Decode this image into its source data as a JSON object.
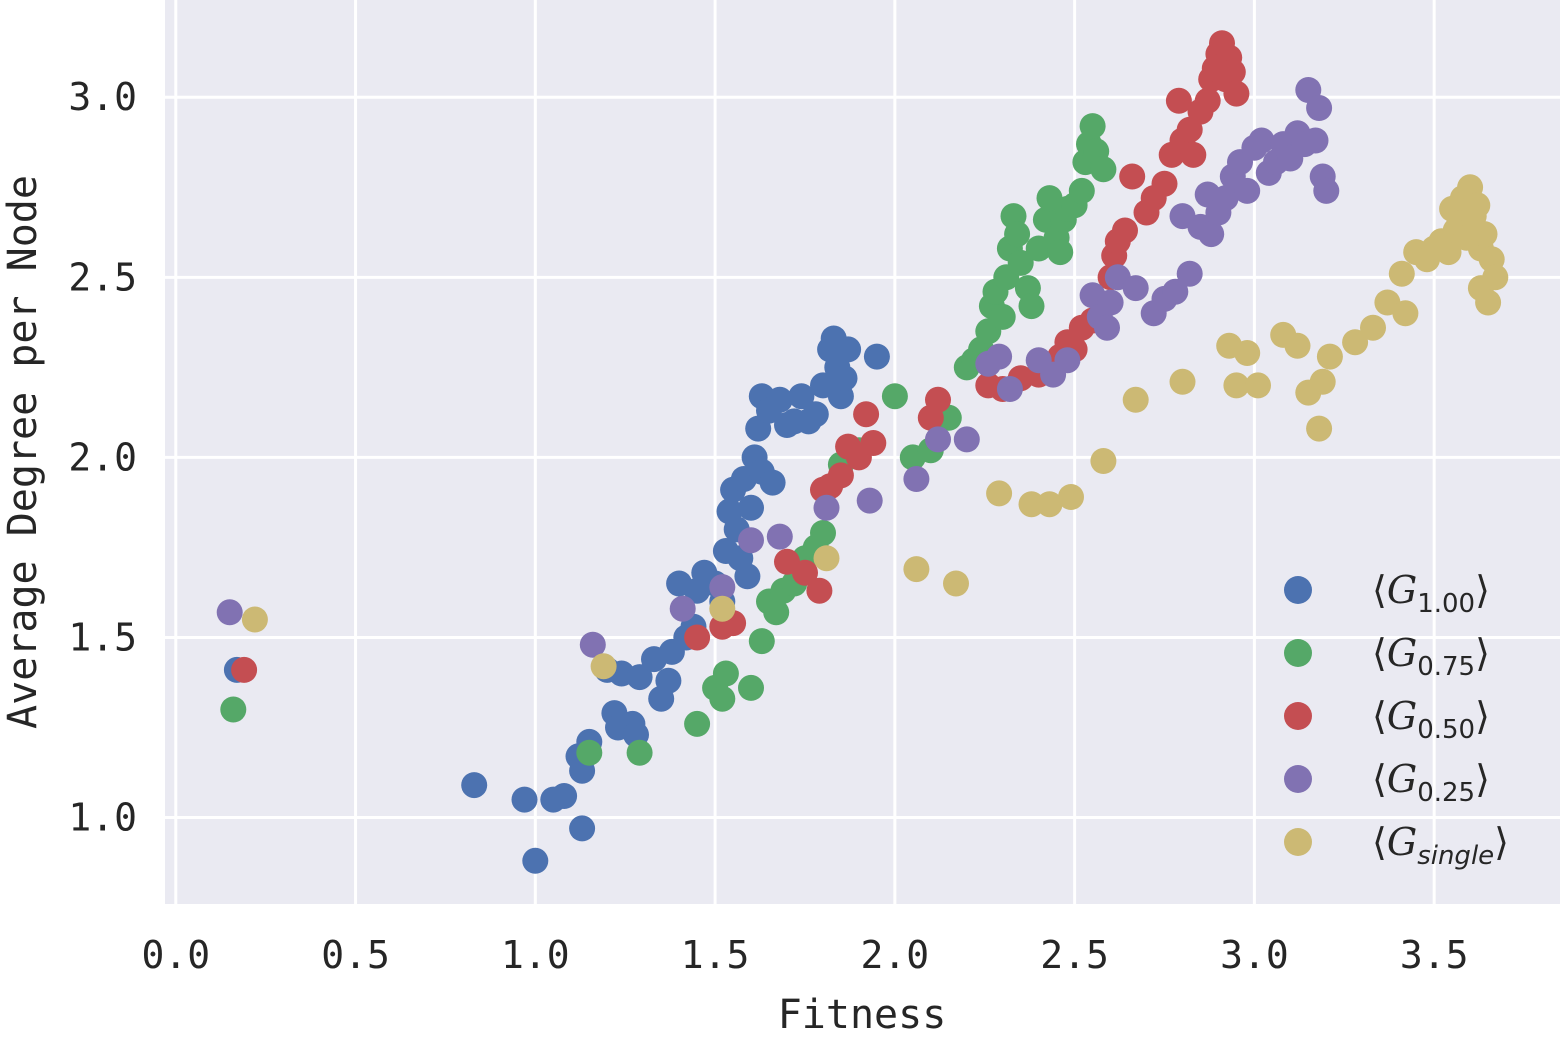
{
  "chart_data": {
    "type": "scatter",
    "title": "",
    "xlabel": "Fitness",
    "ylabel": "Average Degree per Node",
    "xlim": [
      -0.03,
      3.85
    ],
    "ylim": [
      0.76,
      3.27
    ],
    "xticks": [
      0.0,
      0.5,
      1.0,
      1.5,
      2.0,
      2.5,
      3.0,
      3.5
    ],
    "yticks": [
      1.0,
      1.5,
      2.0,
      2.5,
      3.0
    ],
    "xtick_labels": [
      "0.0",
      "0.5",
      "1.0",
      "1.5",
      "2.0",
      "2.5",
      "3.0",
      "3.5"
    ],
    "ytick_labels": [
      "1.0",
      "1.5",
      "2.0",
      "2.5",
      "3.0"
    ],
    "grid": true,
    "legend_position": "bottom-right",
    "series": [
      {
        "name": "⟨G1.00⟩",
        "label_main": "G",
        "label_sub": "1.00",
        "sub_italic": false,
        "color": "#4c72b0",
        "points": [
          [
            0.17,
            1.41
          ],
          [
            0.83,
            1.09
          ],
          [
            0.97,
            1.05
          ],
          [
            1.0,
            0.88
          ],
          [
            1.05,
            1.05
          ],
          [
            1.08,
            1.06
          ],
          [
            1.12,
            1.17
          ],
          [
            1.13,
            0.97
          ],
          [
            1.13,
            1.13
          ],
          [
            1.15,
            1.21
          ],
          [
            1.2,
            1.41
          ],
          [
            1.22,
            1.29
          ],
          [
            1.23,
            1.25
          ],
          [
            1.24,
            1.4
          ],
          [
            1.27,
            1.26
          ],
          [
            1.28,
            1.23
          ],
          [
            1.29,
            1.39
          ],
          [
            1.33,
            1.44
          ],
          [
            1.35,
            1.33
          ],
          [
            1.37,
            1.38
          ],
          [
            1.38,
            1.46
          ],
          [
            1.4,
            1.65
          ],
          [
            1.42,
            1.5
          ],
          [
            1.44,
            1.53
          ],
          [
            1.45,
            1.63
          ],
          [
            1.47,
            1.68
          ],
          [
            1.5,
            1.65
          ],
          [
            1.52,
            1.6
          ],
          [
            1.53,
            1.74
          ],
          [
            1.54,
            1.85
          ],
          [
            1.55,
            1.91
          ],
          [
            1.56,
            1.8
          ],
          [
            1.57,
            1.72
          ],
          [
            1.58,
            1.94
          ],
          [
            1.59,
            1.67
          ],
          [
            1.6,
            1.86
          ],
          [
            1.61,
            2.0
          ],
          [
            1.62,
            2.08
          ],
          [
            1.63,
            2.17
          ],
          [
            1.63,
            1.96
          ],
          [
            1.65,
            2.13
          ],
          [
            1.66,
            1.93
          ],
          [
            1.68,
            2.16
          ],
          [
            1.7,
            2.09
          ],
          [
            1.72,
            2.1
          ],
          [
            1.74,
            2.17
          ],
          [
            1.76,
            2.1
          ],
          [
            1.78,
            2.12
          ],
          [
            1.8,
            2.2
          ],
          [
            1.82,
            2.3
          ],
          [
            1.83,
            2.33
          ],
          [
            1.84,
            2.25
          ],
          [
            1.85,
            2.17
          ],
          [
            1.86,
            2.22
          ],
          [
            1.87,
            2.3
          ],
          [
            1.95,
            2.28
          ]
        ]
      },
      {
        "name": "⟨G0.75⟩",
        "label_main": "G",
        "label_sub": "0.75",
        "sub_italic": false,
        "color": "#55a868",
        "points": [
          [
            0.16,
            1.3
          ],
          [
            1.15,
            1.18
          ],
          [
            1.29,
            1.18
          ],
          [
            1.45,
            1.26
          ],
          [
            1.5,
            1.36
          ],
          [
            1.52,
            1.33
          ],
          [
            1.53,
            1.4
          ],
          [
            1.6,
            1.36
          ],
          [
            1.63,
            1.49
          ],
          [
            1.65,
            1.6
          ],
          [
            1.67,
            1.57
          ],
          [
            1.69,
            1.63
          ],
          [
            1.72,
            1.65
          ],
          [
            1.75,
            1.72
          ],
          [
            1.78,
            1.75
          ],
          [
            1.8,
            1.79
          ],
          [
            1.85,
            1.98
          ],
          [
            1.9,
            2.02
          ],
          [
            2.0,
            2.17
          ],
          [
            2.05,
            2.0
          ],
          [
            2.1,
            2.02
          ],
          [
            2.15,
            2.11
          ],
          [
            2.2,
            2.25
          ],
          [
            2.22,
            2.27
          ],
          [
            2.24,
            2.3
          ],
          [
            2.26,
            2.35
          ],
          [
            2.27,
            2.42
          ],
          [
            2.28,
            2.46
          ],
          [
            2.3,
            2.39
          ],
          [
            2.31,
            2.5
          ],
          [
            2.32,
            2.58
          ],
          [
            2.33,
            2.67
          ],
          [
            2.34,
            2.62
          ],
          [
            2.35,
            2.54
          ],
          [
            2.37,
            2.47
          ],
          [
            2.38,
            2.42
          ],
          [
            2.4,
            2.58
          ],
          [
            2.42,
            2.66
          ],
          [
            2.43,
            2.72
          ],
          [
            2.45,
            2.61
          ],
          [
            2.46,
            2.57
          ],
          [
            2.47,
            2.66
          ],
          [
            2.48,
            2.69
          ],
          [
            2.5,
            2.7
          ],
          [
            2.52,
            2.74
          ],
          [
            2.53,
            2.82
          ],
          [
            2.54,
            2.87
          ],
          [
            2.55,
            2.92
          ],
          [
            2.56,
            2.85
          ],
          [
            2.58,
            2.8
          ]
        ]
      },
      {
        "name": "⟨G0.50⟩",
        "label_main": "G",
        "label_sub": "0.50",
        "sub_italic": false,
        "color": "#c44e52",
        "points": [
          [
            0.19,
            1.41
          ],
          [
            1.45,
            1.5
          ],
          [
            1.52,
            1.53
          ],
          [
            1.55,
            1.54
          ],
          [
            1.7,
            1.71
          ],
          [
            1.75,
            1.68
          ],
          [
            1.79,
            1.63
          ],
          [
            1.8,
            1.91
          ],
          [
            1.82,
            1.92
          ],
          [
            1.85,
            1.95
          ],
          [
            1.87,
            2.03
          ],
          [
            1.9,
            2.0
          ],
          [
            1.92,
            2.12
          ],
          [
            1.94,
            2.04
          ],
          [
            2.1,
            2.11
          ],
          [
            2.12,
            2.16
          ],
          [
            2.26,
            2.2
          ],
          [
            2.3,
            2.19
          ],
          [
            2.35,
            2.22
          ],
          [
            2.4,
            2.23
          ],
          [
            2.43,
            2.24
          ],
          [
            2.46,
            2.28
          ],
          [
            2.48,
            2.32
          ],
          [
            2.5,
            2.3
          ],
          [
            2.52,
            2.36
          ],
          [
            2.55,
            2.38
          ],
          [
            2.58,
            2.42
          ],
          [
            2.6,
            2.5
          ],
          [
            2.61,
            2.56
          ],
          [
            2.62,
            2.6
          ],
          [
            2.64,
            2.63
          ],
          [
            2.66,
            2.78
          ],
          [
            2.7,
            2.68
          ],
          [
            2.72,
            2.72
          ],
          [
            2.75,
            2.76
          ],
          [
            2.77,
            2.84
          ],
          [
            2.79,
            2.99
          ],
          [
            2.8,
            2.88
          ],
          [
            2.82,
            2.91
          ],
          [
            2.83,
            2.84
          ],
          [
            2.85,
            2.96
          ],
          [
            2.87,
            2.99
          ],
          [
            2.88,
            3.05
          ],
          [
            2.89,
            3.08
          ],
          [
            2.9,
            3.12
          ],
          [
            2.91,
            3.15
          ],
          [
            2.92,
            3.05
          ],
          [
            2.93,
            3.11
          ],
          [
            2.94,
            3.07
          ],
          [
            2.95,
            3.01
          ]
        ]
      },
      {
        "name": "⟨G0.25⟩",
        "label_main": "G",
        "label_sub": "0.25",
        "sub_italic": false,
        "color": "#8172b2",
        "points": [
          [
            0.15,
            1.57
          ],
          [
            1.16,
            1.48
          ],
          [
            1.41,
            1.58
          ],
          [
            1.52,
            1.64
          ],
          [
            1.6,
            1.77
          ],
          [
            1.68,
            1.78
          ],
          [
            1.81,
            1.86
          ],
          [
            1.93,
            1.88
          ],
          [
            2.06,
            1.94
          ],
          [
            2.12,
            2.05
          ],
          [
            2.2,
            2.05
          ],
          [
            2.26,
            2.26
          ],
          [
            2.29,
            2.28
          ],
          [
            2.32,
            2.19
          ],
          [
            2.4,
            2.27
          ],
          [
            2.44,
            2.23
          ],
          [
            2.48,
            2.27
          ],
          [
            2.55,
            2.45
          ],
          [
            2.57,
            2.39
          ],
          [
            2.59,
            2.36
          ],
          [
            2.6,
            2.43
          ],
          [
            2.62,
            2.5
          ],
          [
            2.67,
            2.47
          ],
          [
            2.72,
            2.4
          ],
          [
            2.75,
            2.44
          ],
          [
            2.78,
            2.46
          ],
          [
            2.8,
            2.67
          ],
          [
            2.82,
            2.51
          ],
          [
            2.85,
            2.64
          ],
          [
            2.87,
            2.73
          ],
          [
            2.88,
            2.62
          ],
          [
            2.9,
            2.68
          ],
          [
            2.92,
            2.72
          ],
          [
            2.94,
            2.78
          ],
          [
            2.96,
            2.82
          ],
          [
            2.98,
            2.74
          ],
          [
            3.0,
            2.86
          ],
          [
            3.02,
            2.88
          ],
          [
            3.04,
            2.79
          ],
          [
            3.06,
            2.82
          ],
          [
            3.08,
            2.87
          ],
          [
            3.1,
            2.83
          ],
          [
            3.12,
            2.9
          ],
          [
            3.14,
            2.87
          ],
          [
            3.15,
            3.02
          ],
          [
            3.17,
            2.88
          ],
          [
            3.18,
            2.97
          ],
          [
            3.19,
            2.78
          ],
          [
            3.2,
            2.74
          ]
        ]
      },
      {
        "name": "⟨Gsingle⟩",
        "label_main": "G",
        "label_sub": "single",
        "sub_italic": true,
        "color": "#ccb974",
        "points": [
          [
            0.22,
            1.55
          ],
          [
            1.19,
            1.42
          ],
          [
            1.52,
            1.58
          ],
          [
            1.81,
            1.72
          ],
          [
            2.06,
            1.69
          ],
          [
            2.17,
            1.65
          ],
          [
            2.29,
            1.9
          ],
          [
            2.38,
            1.87
          ],
          [
            2.43,
            1.87
          ],
          [
            2.49,
            1.89
          ],
          [
            2.58,
            1.99
          ],
          [
            2.67,
            2.16
          ],
          [
            2.8,
            2.21
          ],
          [
            2.93,
            2.31
          ],
          [
            2.95,
            2.2
          ],
          [
            2.98,
            2.29
          ],
          [
            3.01,
            2.2
          ],
          [
            3.08,
            2.34
          ],
          [
            3.12,
            2.31
          ],
          [
            3.15,
            2.18
          ],
          [
            3.18,
            2.08
          ],
          [
            3.19,
            2.21
          ],
          [
            3.21,
            2.28
          ],
          [
            3.28,
            2.32
          ],
          [
            3.33,
            2.36
          ],
          [
            3.37,
            2.43
          ],
          [
            3.41,
            2.51
          ],
          [
            3.42,
            2.4
          ],
          [
            3.45,
            2.57
          ],
          [
            3.48,
            2.55
          ],
          [
            3.5,
            2.58
          ],
          [
            3.52,
            2.6
          ],
          [
            3.54,
            2.57
          ],
          [
            3.55,
            2.69
          ],
          [
            3.56,
            2.63
          ],
          [
            3.57,
            2.65
          ],
          [
            3.58,
            2.72
          ],
          [
            3.59,
            2.61
          ],
          [
            3.6,
            2.75
          ],
          [
            3.61,
            2.67
          ],
          [
            3.62,
            2.7
          ],
          [
            3.63,
            2.47
          ],
          [
            3.63,
            2.58
          ],
          [
            3.64,
            2.62
          ],
          [
            3.65,
            2.43
          ],
          [
            3.66,
            2.55
          ],
          [
            3.67,
            2.5
          ]
        ]
      }
    ]
  }
}
